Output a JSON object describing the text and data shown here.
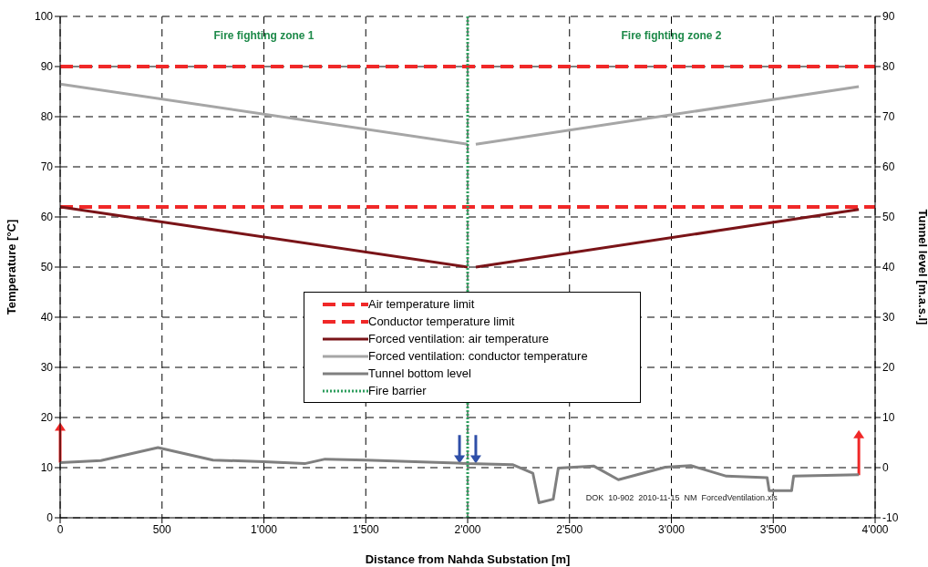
{
  "chart_data": {
    "type": "line",
    "xlabel": "Distance from Nahda Substation [m]",
    "ylabel": "Temperature [°C]",
    "y2label": "Tunnel level [m.a.s.l]",
    "xlim": [
      0,
      4000
    ],
    "xticks": [
      0,
      500,
      {
        "value": 1000,
        "label": "1'000"
      },
      {
        "value": 1500,
        "label": "1'500"
      },
      {
        "value": 2000,
        "label": "2'000"
      },
      {
        "value": 2500,
        "label": "2'500"
      },
      {
        "value": 3000,
        "label": "3'000"
      },
      {
        "value": 3500,
        "label": "3'500"
      },
      {
        "value": 4000,
        "label": "4'000"
      }
    ],
    "ylim": [
      0,
      100
    ],
    "yticks": [
      0,
      10,
      20,
      30,
      40,
      50,
      60,
      70,
      80,
      90,
      100
    ],
    "y2lim": [
      -10,
      90
    ],
    "y2ticks": [
      -10,
      0,
      10,
      20,
      30,
      40,
      50,
      60,
      70,
      80,
      90
    ],
    "grid": true,
    "legend": "bottom",
    "marker": "none",
    "annotations": [
      "Fire fighting zone 1",
      "Fire fighting zone 2",
      "DOK  10-902  2010-11-15  NM  ForcedVentilation.xls"
    ],
    "series": [
      {
        "name": "Air temperature limit",
        "color": "#f02828",
        "line_style": "dashed",
        "x": [
          0,
          4000
        ],
        "values": [
          62,
          62
        ]
      },
      {
        "name": "Conductor temperature limit",
        "color": "#f02828",
        "line_style": "dashed",
        "x": [
          0,
          4000
        ],
        "values": [
          90,
          90
        ]
      },
      {
        "name": "Forced ventilation: air temperature",
        "color": "#7a1418",
        "line_style": "solid",
        "x": [
          0,
          2000,
          2020,
          2040,
          3920
        ],
        "values": [
          62,
          50,
          null,
          50,
          61.5
        ]
      },
      {
        "name": "Forced ventilation: conductor temperature",
        "color": "#a6a6a6",
        "line_style": "solid",
        "x": [
          0,
          2000,
          2020,
          2040,
          3920
        ],
        "values": [
          86.5,
          74.5,
          null,
          74.5,
          86
        ]
      },
      {
        "name": "Tunnel bottom level",
        "color": "#7f7f7f",
        "line_style": "solid",
        "axis": "y2",
        "x": [
          0,
          200,
          480,
          750,
          1000,
          1200,
          1300,
          1500,
          1950,
          2000,
          2220,
          2320,
          2350,
          2420,
          2445,
          2620,
          2740,
          2970,
          3095,
          3270,
          3470,
          3480,
          3590,
          3600,
          3920
        ],
        "values": [
          1.0,
          1.4,
          4.0,
          1.5,
          1.2,
          0.8,
          1.7,
          1.5,
          0.9,
          0.8,
          0.6,
          -1.1,
          -7.0,
          -6.3,
          -0.1,
          0.3,
          -2.4,
          0.1,
          0.4,
          -1.7,
          -2.0,
          -4.6,
          -4.6,
          -1.7,
          -1.4
        ]
      },
      {
        "name": "Fire barrier",
        "color": "#2e9e5e",
        "line_style": "dotted",
        "x": [
          2000,
          2000
        ],
        "values": [
          0,
          100
        ]
      }
    ]
  }
}
